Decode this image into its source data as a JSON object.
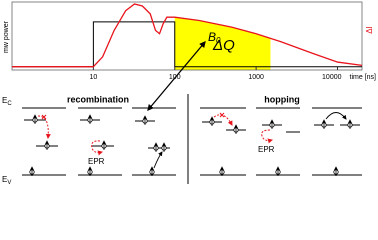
{
  "chart_data": {
    "type": "line",
    "ylabel": "mw power",
    "y2label": "ΔI",
    "xlabel": "time [ns]",
    "xscale": "log",
    "xlim": [
      1,
      20000
    ],
    "xticks": [
      10,
      100,
      1000,
      10000
    ],
    "ylim": [
      0,
      1
    ],
    "y2lim": [
      0,
      1
    ],
    "series": [
      {
        "color": "#000000",
        "x": [
          1,
          10,
          10,
          100,
          100,
          20000
        ],
        "values": [
          0.05,
          0.05,
          0.73,
          0.73,
          0.05,
          0.05
        ]
      },
      {
        "color": "#e8141c",
        "axis": "y2",
        "x": [
          1,
          10,
          13,
          18,
          25,
          32,
          40,
          50,
          58,
          65,
          72,
          80,
          100,
          200,
          500,
          1000,
          2000,
          5000,
          10000,
          20000
        ],
        "values": [
          0.05,
          0.05,
          0.2,
          0.6,
          0.9,
          1.0,
          0.97,
          0.85,
          0.6,
          0.55,
          0.7,
          0.8,
          0.8,
          0.75,
          0.65,
          0.55,
          0.43,
          0.25,
          0.12,
          0.07
        ]
      }
    ],
    "shade": {
      "xlim": [
        100,
        1500
      ],
      "label": "ΔQ",
      "color": "#ffff00"
    },
    "field": {
      "label": "B",
      "sub": "0"
    }
  },
  "diagrams": {
    "conduction": {
      "main": "E",
      "sub": "C"
    },
    "valence": {
      "main": "E",
      "sub": "V"
    },
    "panels": [
      {
        "title": "recombination",
        "epr_label": "EPR"
      },
      {
        "title": "hopping",
        "epr_label": "EPR"
      }
    ]
  }
}
